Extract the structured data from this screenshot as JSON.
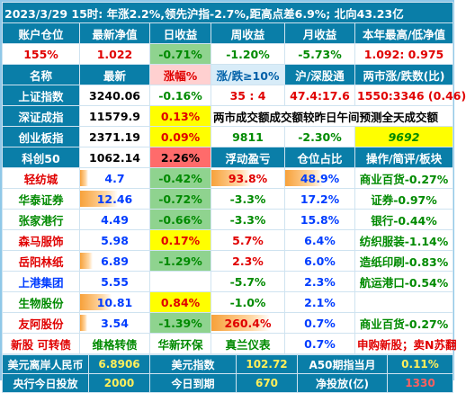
{
  "title": "2023/3/29 15时: 年涨2.2%,领先沪指-2.7%,距高点差6.9%; 北向43.23亿",
  "account": {
    "headers": [
      "账户仓位",
      "最新净值",
      "日收益",
      "周收益",
      "月收益",
      "本年最高/低净值"
    ],
    "values": [
      "155%",
      "1.022",
      "-0.71%",
      "-1.20%",
      "-5.73%",
      "1.092: 0.975"
    ]
  },
  "market": {
    "headers": [
      "名称",
      "最新",
      "涨幅%",
      "涨/跌≥10%",
      "沪/深股通",
      "两市涨/跌数(比)"
    ],
    "rows": [
      {
        "name": "上证指数",
        "last": "3240.06",
        "chg": "-0.16%",
        "c4": "35 : 4",
        "c5": "47.4:17.6",
        "c6": "1550:3346 (0.46)"
      },
      {
        "name": "深证成指",
        "last": "11579.9",
        "chg": "0.13%",
        "c4": "两市成交额成交额较昨日午间预测全天成交额"
      },
      {
        "name": "创业板指",
        "last": "2371.19",
        "chg": "0.09%",
        "c4": "9811",
        "c5": "-2.30%",
        "c6": "9692"
      },
      {
        "name": "科创50",
        "last": "1062.14",
        "chg": "2.26%",
        "c4": "浮动盈亏",
        "c5": "仓位占比",
        "c6": "操作/简评/板块"
      }
    ]
  },
  "holdings": [
    {
      "name": "轻纺城",
      "last": "4.7",
      "chg": "-0.42%",
      "pnl": "93.8%",
      "pos": "48.9%",
      "note": "商业百货-0.27%",
      "bar": 0.55
    },
    {
      "name": "华泰证券",
      "last": "12.46",
      "chg": "-0.72%",
      "pnl": "-3.3%",
      "pos": "17.2%",
      "note": "证券-0.97%",
      "bar": 0.18
    },
    {
      "name": "张家港行",
      "last": "4.49",
      "chg": "-0.66%",
      "pnl": "-3.3%",
      "pos": "15.8%",
      "note": "银行-0.44%",
      "bar": 0.15
    },
    {
      "name": "森马服饰",
      "last": "5.98",
      "chg": "0.17%",
      "pnl": "5.7%",
      "pos": "6.4%",
      "note": "纺织服装-1.14%",
      "bar": 0.12
    },
    {
      "name": "岳阳林纸",
      "last": "6.89",
      "chg": "-1.29%",
      "pnl": "2.3%",
      "pos": "6.0%",
      "note": "造纸印刷-0.83%",
      "bar": 0.1
    },
    {
      "name": "上港集团",
      "last": "5.55",
      "chg": "",
      "pnl": "-5.7%",
      "pos": "2.3%",
      "note": "航运港口-0.54%",
      "bar": 0
    },
    {
      "name": "生物股份",
      "last": "10.81",
      "chg": "0.84%",
      "pnl": "-1.0%",
      "pos": "2.1%",
      "note": "",
      "bar": 0.22
    },
    {
      "name": "友阿股份",
      "last": "3.54",
      "chg": "-1.39%",
      "pnl": "260.4%",
      "pos": "0.7%",
      "note": "商业百货-0.27%",
      "bar": 0.12
    },
    {
      "name": "新股 可转债",
      "last": "维格转债",
      "chg": "华新环保",
      "pnl": "真兰仪表",
      "pos": "0.7%",
      "note": "申购新股；卖N苏翻"
    }
  ],
  "footer": {
    "row1": [
      "美元离岸人民币",
      "6.8906",
      "美元指数",
      "102.72",
      "A50期指当月",
      "0.11%"
    ],
    "row2": [
      "央行今日投放",
      "2000",
      "今日到期",
      "670",
      "净投放(亿)",
      "1330"
    ]
  }
}
